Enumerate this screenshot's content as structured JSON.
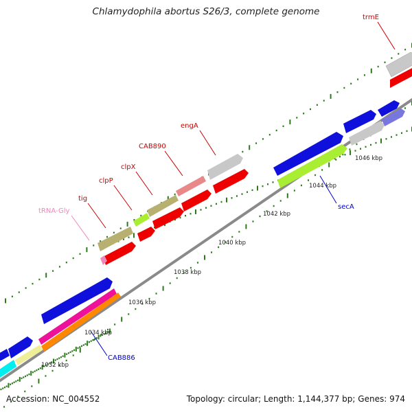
{
  "title": "Chlamydophila abortus S26/3, complete genome",
  "footer": {
    "accession_label": "Accession:",
    "accession": "NC_004552",
    "topology_label": "Topology:",
    "topology": "circular",
    "length_label": "Length:",
    "length": "1,144,377 bp",
    "genes_label": "Genes:",
    "genes": "974"
  },
  "scale_labels": [
    "1032 kbp",
    "1034 kbp",
    "1036 kbp",
    "1038 kbp",
    "1040 kbp",
    "1042 kbp",
    "1044 kbp",
    "1046 kbp"
  ],
  "gene_labels": [
    {
      "text": "trmE",
      "color": "#cc0000"
    },
    {
      "text": "engA",
      "color": "#cc0000"
    },
    {
      "text": "CAB890",
      "color": "#cc0000"
    },
    {
      "text": "clpX",
      "color": "#cc0000"
    },
    {
      "text": "clpP",
      "color": "#cc0000"
    },
    {
      "text": "tig",
      "color": "#cc0000"
    },
    {
      "text": "tRNA-Gly",
      "color": "#ee88bb"
    },
    {
      "text": "secA",
      "color": "#0000cc"
    },
    {
      "text": "CAB886",
      "color": "#0000cc"
    }
  ],
  "colors": {
    "backbone": "#8a8a8a",
    "tick": "#2a7a1a",
    "red": "#ee0000",
    "gray": "#c8c8c8",
    "olive": "#b8b070",
    "pink": "#e88888",
    "lime": "#aaee33",
    "blue": "#1010dd",
    "lavender": "#7777dd",
    "magenta": "#ee1199",
    "orange": "#ff8800",
    "khaki": "#eeee99",
    "cyan": "#00eeee"
  }
}
